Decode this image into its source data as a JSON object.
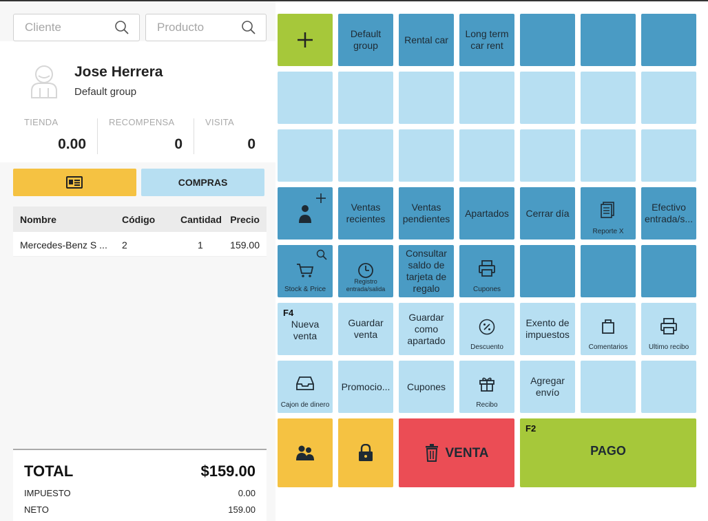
{
  "search": {
    "cliente_placeholder": "Cliente",
    "producto_placeholder": "Producto"
  },
  "customer": {
    "name": "Jose Herrera",
    "group": "Default group",
    "stats": [
      {
        "label": "TIENDA",
        "value": "0.00"
      },
      {
        "label": "RECOMPENSA",
        "value": "0"
      },
      {
        "label": "VISITA",
        "value": "0"
      }
    ]
  },
  "actions": {
    "compras_label": "COMPRAS"
  },
  "cart": {
    "headers": {
      "name": "Nombre",
      "code": "Código",
      "qty": "Cantidad",
      "price": "Precio"
    },
    "rows": [
      {
        "name": "Mercedes-Benz S ...",
        "code": "2",
        "qty": "1",
        "price": "159.00"
      }
    ]
  },
  "totals": {
    "total_label": "TOTAL",
    "total_value": "$159.00",
    "tax_label": "IMPUESTO",
    "tax_value": "0.00",
    "net_label": "NETO",
    "net_value": "159.00"
  },
  "grid": {
    "row1": {
      "default_group": "Default group",
      "rental_car": "Rental car",
      "long_term": "Long term car rent"
    },
    "row4": {
      "ventas_recientes": "Ventas recientes",
      "ventas_pendientes": "Ventas pendientes",
      "apartados": "Apartados",
      "cerrar_dia": "Cerrar día",
      "reporte_x": "Reporte X",
      "efectivo": "Efectivo entrada/s..."
    },
    "row5": {
      "stock_price": "Stock & Price",
      "registro": "Registro entrada/salida",
      "consultar": "Consultar saldo de tarjeta de regalo",
      "cupones_small": "Cupones"
    },
    "row6": {
      "f4": "F4",
      "nueva_venta": "Nueva venta",
      "guardar_venta": "Guardar venta",
      "guardar_apartado": "Guardar como apartado",
      "descuento": "Descuento",
      "exento": "Exento de impuestos",
      "comentarios": "Comentarios",
      "ultimo_recibo": "Ultimo recibo"
    },
    "row7": {
      "cajon": "Cajon de dinero",
      "promocio": "Promocio...",
      "cupones": "Cupones",
      "recibo": "Recibo",
      "agregar_envio": "Agregar envío"
    },
    "bottom": {
      "venta": "VENTA",
      "f2": "F2",
      "pago": "PAGO"
    }
  },
  "colors": {
    "dark_tile": "#4a9bc4",
    "light_tile": "#b7dff2",
    "green": "#a6c83a",
    "yellow": "#f5c242",
    "red": "#eb4d55"
  }
}
